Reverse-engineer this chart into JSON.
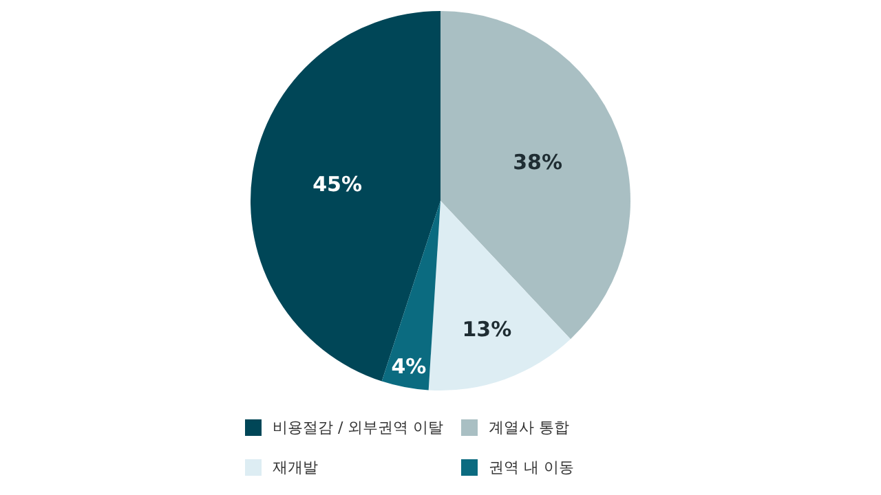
{
  "chart_data": {
    "type": "pie",
    "categories": [
      "비용절감 / 외부권역 이탈",
      "계열사 통합",
      "재개발",
      "권역 내 이동"
    ],
    "values": [
      45,
      38,
      13,
      4
    ],
    "colors": [
      "#004657",
      "#a9bfc3",
      "#ddedf3",
      "#0b6b80"
    ],
    "value_labels": [
      "45%",
      "38%",
      "13%",
      "4%"
    ],
    "legend": "bottom"
  }
}
